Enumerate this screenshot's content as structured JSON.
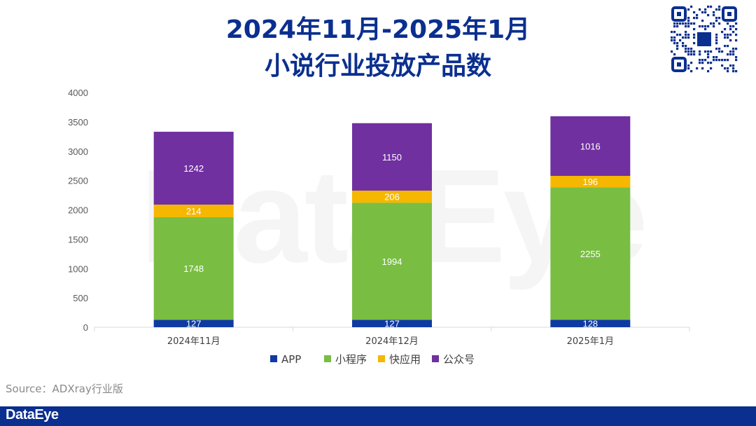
{
  "title_line_1": "2024年11月-2025年1月",
  "title_line_2": "小说行业投放产品数",
  "watermark_text": "DataEye",
  "source_text": "Source：ADXray行业版",
  "footer_brand": "DataEye",
  "chart_data": {
    "type": "bar",
    "stacked": true,
    "categories": [
      "2024年11月",
      "2024年12月",
      "2025年1月"
    ],
    "series": [
      {
        "name": "APP",
        "color": "#0f3aa1",
        "values": [
          127,
          127,
          128
        ]
      },
      {
        "name": "小程序",
        "color": "#79be43",
        "values": [
          1748,
          1994,
          2255
        ]
      },
      {
        "name": "快应用",
        "color": "#f5b700",
        "values": [
          214,
          206,
          196
        ]
      },
      {
        "name": "公众号",
        "color": "#7030a0",
        "values": [
          1242,
          1150,
          1016
        ]
      }
    ],
    "ylim": [
      0,
      4000
    ],
    "yticks": [
      0,
      500,
      1000,
      1500,
      2000,
      2500,
      3000,
      3500,
      4000
    ],
    "grid": false,
    "legend_position": "bottom"
  }
}
